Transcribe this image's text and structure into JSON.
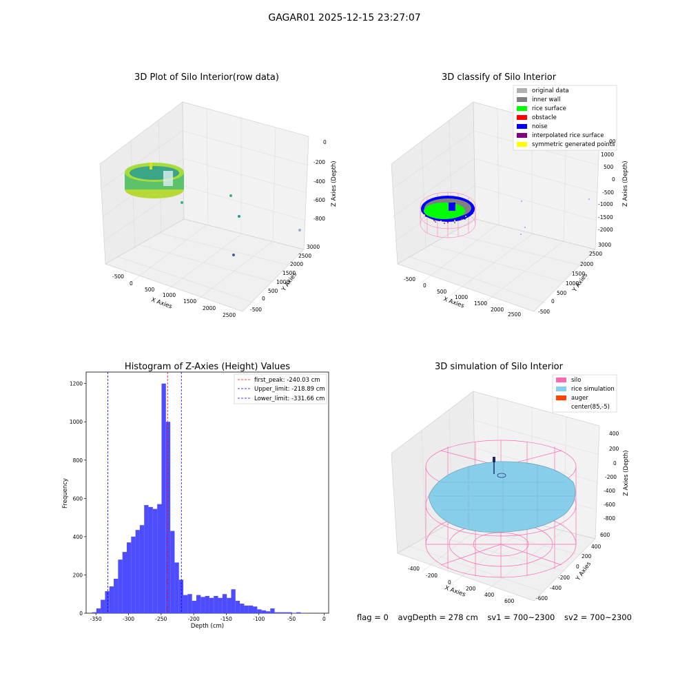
{
  "suptitle": "GAGAR01 2025-12-15 23:27:07",
  "colors": {
    "original": "#b0b0b0",
    "inner_wall": "#808080",
    "rice_surface": "#00ff00",
    "obstacle": "#ff0000",
    "noise": "#0000ff",
    "interpolated": "#800080",
    "symmetric": "#ffff00",
    "silo": "#ff69b4",
    "rice_sim": "#87ceeb",
    "auger": "#ff4500",
    "hist": "#4d4dff"
  },
  "plots": {
    "raw": {
      "title": "3D Plot of Silo Interior(row data)",
      "xlabel": "X Axies",
      "ylabel": "Y Axies",
      "zlabel": "Z Axies (Depth)",
      "xticks": [
        "-500",
        "0",
        "500",
        "1000",
        "1500",
        "2000",
        "2500"
      ],
      "yticks": [
        "-500",
        "0",
        "500",
        "1000",
        "1500",
        "2000",
        "2500",
        "3000"
      ],
      "zticks": [
        "0",
        "-200",
        "-400",
        "-600",
        "-800"
      ]
    },
    "classify": {
      "title": "3D classify of Silo Interior",
      "xlabel": "X Axies",
      "ylabel": "Y Axies",
      "zlabel": "Z Axies (Depth)",
      "xticks": [
        "-500",
        "0",
        "500",
        "1000",
        "1500",
        "2000",
        "2500"
      ],
      "yticks": [
        "-500",
        "0",
        "500",
        "1000",
        "1500",
        "2000",
        "2500",
        "3000"
      ],
      "zticks": [
        "1000",
        "500",
        "0",
        "-500",
        "-1000",
        "-1500",
        "-2000"
      ],
      "legend": [
        {
          "label": "original data",
          "color": "#b0b0b0"
        },
        {
          "label": "inner wall",
          "color": "#808080"
        },
        {
          "label": "rice surface",
          "color": "#00ff00"
        },
        {
          "label": "obstacle",
          "color": "#ff0000"
        },
        {
          "label": "noise",
          "color": "#0000ff"
        },
        {
          "label": "interpolated rice surface",
          "color": "#800080"
        },
        {
          "label": "symmetric generated points",
          "color": "#ffff00"
        }
      ],
      "partial_tick": "00"
    },
    "simulation": {
      "title": "3D simulation of Silo Interior",
      "xlabel": "X Axies",
      "ylabel": "Y Axies",
      "zlabel": "Z Axies (Depth)",
      "xticks": [
        "-400",
        "-200",
        "0",
        "200",
        "400",
        "600"
      ],
      "yticks": [
        "600",
        "400",
        "200",
        "0",
        "-200",
        "-400",
        "-600"
      ],
      "zticks": [
        "400",
        "200",
        "0",
        "-200",
        "-400",
        "-600",
        "-800"
      ],
      "legend": [
        {
          "label": "silo",
          "color": "#ff69b4"
        },
        {
          "label": "rice simulation",
          "color": "#87ceeb"
        },
        {
          "label": "auger",
          "color": "#ff4500"
        },
        {
          "label": "center(85,-5)",
          "color": ""
        }
      ]
    }
  },
  "chart_data": {
    "type": "bar",
    "title": "Histogram of Z-Axies (Height) Values",
    "xlabel": "Depth (cm)",
    "ylabel": "Frequency",
    "xlim": [
      -365,
      7
    ],
    "ylim": [
      0,
      1260
    ],
    "xticks": [
      -350,
      -300,
      -250,
      -200,
      -150,
      -100,
      -50,
      0
    ],
    "yticks": [
      0,
      200,
      400,
      600,
      800,
      1000,
      1200
    ],
    "bin_start": -356,
    "bin_width": 6.67,
    "values": [
      5,
      25,
      70,
      115,
      140,
      180,
      280,
      320,
      370,
      400,
      435,
      460,
      565,
      555,
      545,
      570,
      1200,
      1000,
      430,
      265,
      175,
      95,
      100,
      65,
      95,
      85,
      90,
      80,
      90,
      80,
      100,
      80,
      125,
      65,
      50,
      40,
      40,
      35,
      20,
      15,
      10,
      25,
      5,
      5,
      5,
      5,
      2,
      5,
      2
    ],
    "lines": [
      {
        "label": "first_peak: -240.03 cm",
        "x": -240.03,
        "color": "#ff0000"
      },
      {
        "label": "Upper_limit: -218.89 cm",
        "x": -218.89,
        "color": "#0000ff"
      },
      {
        "label": "Lower_limit: -331.66 cm",
        "x": -331.66,
        "color": "#0000ff"
      }
    ],
    "legend_position": "top-right"
  },
  "status": {
    "flag": "flag = 0",
    "avg": "avgDepth = 278 cm",
    "sv1": "sv1 = 700~2300",
    "sv2": "sv2 = 700~2300"
  }
}
